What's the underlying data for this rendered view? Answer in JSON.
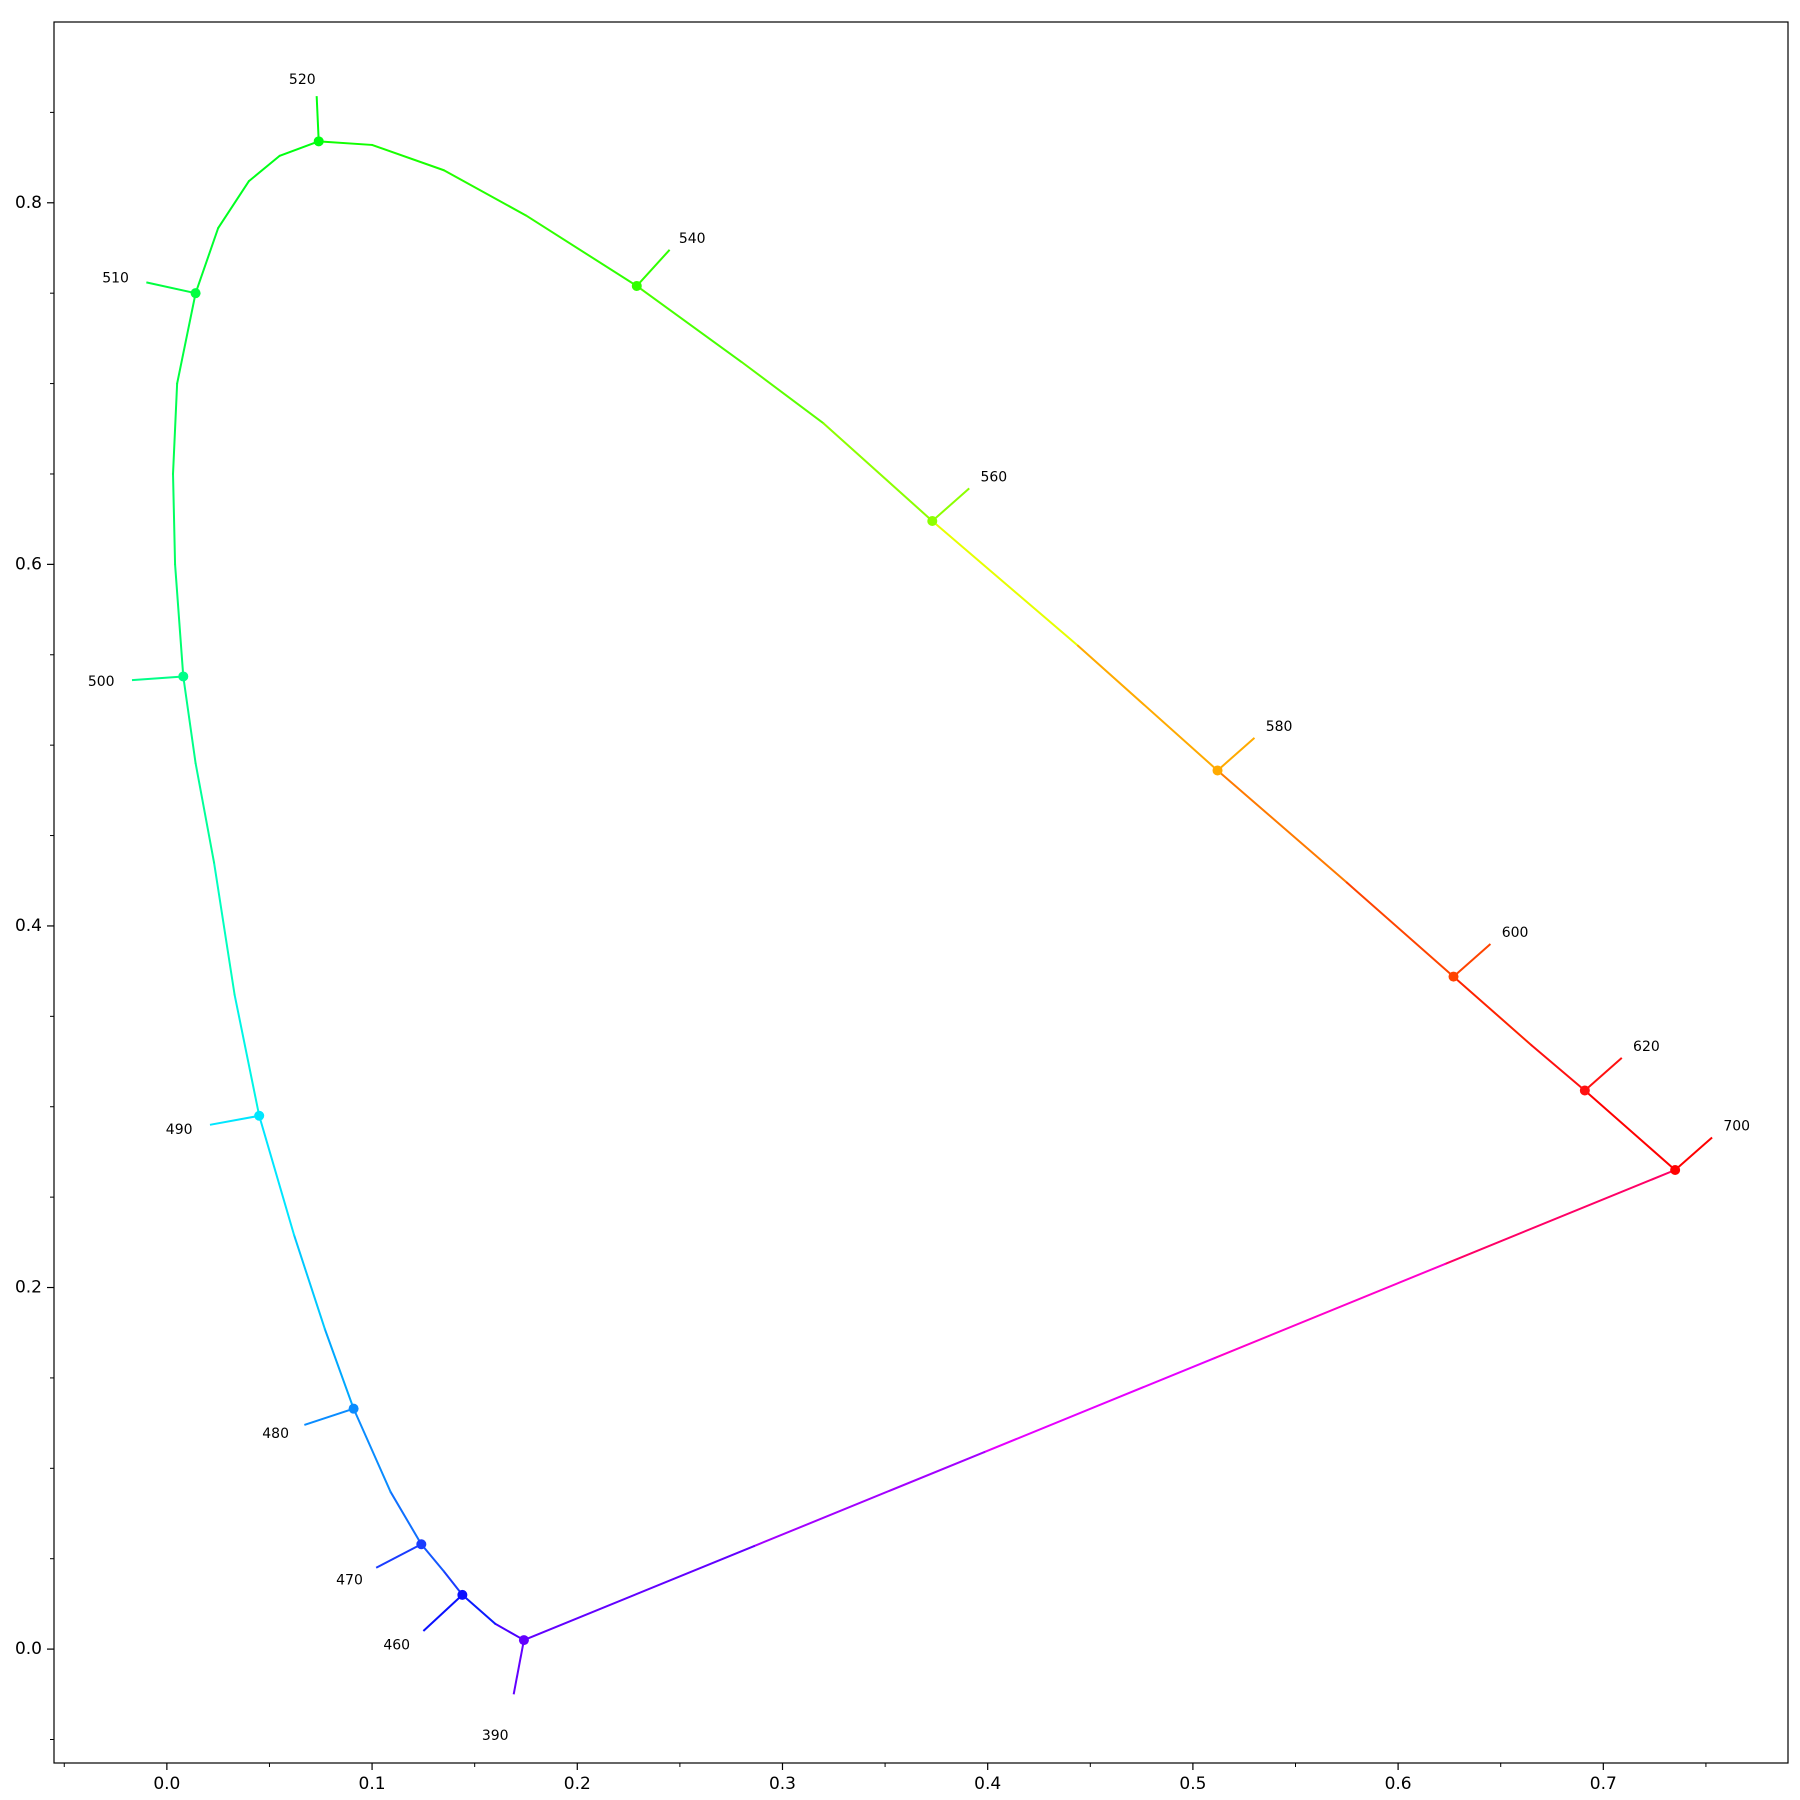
{
  "chart_data": {
    "type": "line",
    "title": "",
    "xlabel": "",
    "ylabel": "",
    "xlim": [
      -0.055,
      0.79
    ],
    "ylim": [
      -0.063,
      0.9
    ],
    "grid": false,
    "x_ticks": [
      "0.0",
      "0.1",
      "0.2",
      "0.3",
      "0.4",
      "0.5",
      "0.6",
      "0.7"
    ],
    "x_tick_values": [
      0.0,
      0.1,
      0.2,
      0.3,
      0.4,
      0.5,
      0.6,
      0.7
    ],
    "y_ticks": [
      "0.0",
      "0.2",
      "0.4",
      "0.6",
      "0.8"
    ],
    "y_tick_values": [
      0.0,
      0.2,
      0.4,
      0.6,
      0.8
    ],
    "locus": [
      {
        "x": 0.174,
        "y": 0.005,
        "color": "#6200ff"
      },
      {
        "x": 0.16,
        "y": 0.014,
        "color": "#4b00ff"
      },
      {
        "x": 0.144,
        "y": 0.03,
        "color": "#0a1aff"
      },
      {
        "x": 0.135,
        "y": 0.043,
        "color": "#1a3cff"
      },
      {
        "x": 0.124,
        "y": 0.058,
        "color": "#1458ff"
      },
      {
        "x": 0.109,
        "y": 0.087,
        "color": "#1070ff"
      },
      {
        "x": 0.091,
        "y": 0.133,
        "color": "#0a8cff"
      },
      {
        "x": 0.077,
        "y": 0.177,
        "color": "#00a8ff"
      },
      {
        "x": 0.062,
        "y": 0.229,
        "color": "#00c8ff"
      },
      {
        "x": 0.045,
        "y": 0.295,
        "color": "#00e6ff"
      },
      {
        "x": 0.033,
        "y": 0.362,
        "color": "#00f5e6"
      },
      {
        "x": 0.023,
        "y": 0.435,
        "color": "#00ffbf"
      },
      {
        "x": 0.014,
        "y": 0.49,
        "color": "#00ff99"
      },
      {
        "x": 0.008,
        "y": 0.538,
        "color": "#00ff88"
      },
      {
        "x": 0.004,
        "y": 0.6,
        "color": "#00ff70"
      },
      {
        "x": 0.003,
        "y": 0.65,
        "color": "#00ff60"
      },
      {
        "x": 0.005,
        "y": 0.7,
        "color": "#00ff50"
      },
      {
        "x": 0.014,
        "y": 0.75,
        "color": "#00ff40"
      },
      {
        "x": 0.025,
        "y": 0.786,
        "color": "#00ff30"
      },
      {
        "x": 0.04,
        "y": 0.812,
        "color": "#00ff20"
      },
      {
        "x": 0.055,
        "y": 0.826,
        "color": "#00ff18"
      },
      {
        "x": 0.074,
        "y": 0.834,
        "color": "#00ff10"
      },
      {
        "x": 0.1,
        "y": 0.832,
        "color": "#10ff00"
      },
      {
        "x": 0.135,
        "y": 0.818,
        "color": "#18ff00"
      },
      {
        "x": 0.175,
        "y": 0.793,
        "color": "#24ff00"
      },
      {
        "x": 0.229,
        "y": 0.754,
        "color": "#30ff00"
      },
      {
        "x": 0.28,
        "y": 0.712,
        "color": "#48ff00"
      },
      {
        "x": 0.32,
        "y": 0.678,
        "color": "#5cff00"
      },
      {
        "x": 0.373,
        "y": 0.624,
        "color": "#8cff00"
      },
      {
        "x": 0.444,
        "y": 0.555,
        "color": "#e6ff00"
      },
      {
        "x": 0.512,
        "y": 0.486,
        "color": "#ffaa00"
      },
      {
        "x": 0.575,
        "y": 0.424,
        "color": "#ff7a00"
      },
      {
        "x": 0.627,
        "y": 0.372,
        "color": "#ff4400"
      },
      {
        "x": 0.665,
        "y": 0.334,
        "color": "#ff2200"
      },
      {
        "x": 0.691,
        "y": 0.309,
        "color": "#ff1010"
      },
      {
        "x": 0.735,
        "y": 0.265,
        "color": "#ff0000"
      }
    ],
    "closing_line": {
      "from": {
        "x": 0.735,
        "y": 0.265
      },
      "to": {
        "x": 0.174,
        "y": 0.005
      },
      "colors": [
        "#ff0066",
        "#ff00cc",
        "#e600ff",
        "#a300ff",
        "#6200ff"
      ]
    },
    "markers": [
      {
        "label": "390",
        "x": 0.174,
        "y": 0.005,
        "color": "#6200ff",
        "tick_dx": -0.005,
        "tick_dy": -0.03,
        "label_dx": -0.014,
        "label_dy": -0.053
      },
      {
        "label": "460",
        "x": 0.144,
        "y": 0.03,
        "color": "#0a10ff",
        "tick_dx": -0.019,
        "tick_dy": -0.02,
        "label_dx": -0.032,
        "label_dy": -0.028
      },
      {
        "label": "470",
        "x": 0.124,
        "y": 0.058,
        "color": "#1a3cff",
        "tick_dx": -0.022,
        "tick_dy": -0.013,
        "label_dx": -0.035,
        "label_dy": -0.02
      },
      {
        "label": "480",
        "x": 0.091,
        "y": 0.133,
        "color": "#0a8cff",
        "tick_dx": -0.024,
        "tick_dy": -0.009,
        "label_dx": -0.038,
        "label_dy": -0.014
      },
      {
        "label": "490",
        "x": 0.045,
        "y": 0.295,
        "color": "#00e6ff",
        "tick_dx": -0.024,
        "tick_dy": -0.005,
        "label_dx": -0.039,
        "label_dy": -0.008
      },
      {
        "label": "500",
        "x": 0.008,
        "y": 0.538,
        "color": "#00ff88",
        "tick_dx": -0.025,
        "tick_dy": -0.002,
        "label_dx": -0.04,
        "label_dy": -0.003
      },
      {
        "label": "510",
        "x": 0.014,
        "y": 0.75,
        "color": "#00ff40",
        "tick_dx": -0.024,
        "tick_dy": 0.006,
        "label_dx": -0.039,
        "label_dy": 0.008
      },
      {
        "label": "520",
        "x": 0.074,
        "y": 0.834,
        "color": "#00ff10",
        "tick_dx": -0.001,
        "tick_dy": 0.025,
        "label_dx": -0.008,
        "label_dy": 0.034
      },
      {
        "label": "540",
        "x": 0.229,
        "y": 0.754,
        "color": "#30ff00",
        "tick_dx": 0.016,
        "tick_dy": 0.02,
        "label_dx": 0.027,
        "label_dy": 0.026
      },
      {
        "label": "560",
        "x": 0.373,
        "y": 0.624,
        "color": "#8cff00",
        "tick_dx": 0.018,
        "tick_dy": 0.018,
        "label_dx": 0.03,
        "label_dy": 0.024
      },
      {
        "label": "580",
        "x": 0.512,
        "y": 0.486,
        "color": "#ffaa00",
        "tick_dx": 0.018,
        "tick_dy": 0.018,
        "label_dx": 0.03,
        "label_dy": 0.024
      },
      {
        "label": "600",
        "x": 0.627,
        "y": 0.372,
        "color": "#ff4400",
        "tick_dx": 0.018,
        "tick_dy": 0.018,
        "label_dx": 0.03,
        "label_dy": 0.024
      },
      {
        "label": "620",
        "x": 0.691,
        "y": 0.309,
        "color": "#ff1010",
        "tick_dx": 0.018,
        "tick_dy": 0.018,
        "label_dx": 0.03,
        "label_dy": 0.024
      },
      {
        "label": "700",
        "x": 0.735,
        "y": 0.265,
        "color": "#ff0000",
        "tick_dx": 0.018,
        "tick_dy": 0.018,
        "label_dx": 0.03,
        "label_dy": 0.024
      }
    ]
  }
}
